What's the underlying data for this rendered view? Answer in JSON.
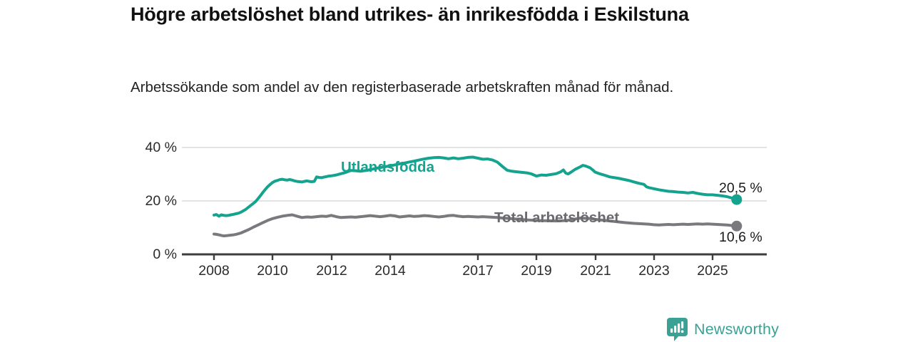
{
  "header": {
    "title": "Högre arbetslöshet bland utrikes- än inrikesfödda i Eskilstuna",
    "subtitle": "Arbetssökande som andel av den registerbaserade arbetskraften månad för månad."
  },
  "footer": {
    "brand": "Newsworthy"
  },
  "colors": {
    "series1": "#14a38e",
    "series2": "#7a7a7e",
    "series2_label": "#696970",
    "grid": "#dadada",
    "axis": "#3d3d3d",
    "value_label": "#1a1a1a",
    "brand": "#3aa195"
  },
  "chart_data": {
    "type": "line",
    "title": "Högre arbetslöshet bland utrikes- än inrikesfödda i Eskilstuna",
    "subtitle": "Arbetssökande som andel av den registerbaserade arbetskraften månad för månad.",
    "xlabel": "",
    "ylabel": "",
    "grid": "horizontal",
    "legend_position": "inline-labels",
    "x_unit": "year (monthly data)",
    "y_unit": "%",
    "xlim": [
      2006.9,
      2026.85
    ],
    "ylim": [
      0,
      42
    ],
    "x_ticks": [
      "2008",
      "2010",
      "2012",
      "2014",
      "2017",
      "2019",
      "2021",
      "2023",
      "2025"
    ],
    "x_tick_years": [
      2008,
      2010,
      2012,
      2014,
      2017,
      2019,
      2021,
      2023,
      2025
    ],
    "y_ticks": [
      0,
      20,
      40
    ],
    "y_tick_labels": [
      "0 %",
      "20 %",
      "40 %"
    ],
    "series": [
      {
        "name": "Utlandsfödda",
        "color": "#14a38e",
        "end_label": "20,5 %",
        "end_value": 20.5,
        "points": [
          [
            2008.0,
            14.7
          ],
          [
            2008.08,
            14.9
          ],
          [
            2008.17,
            14.3
          ],
          [
            2008.25,
            14.8
          ],
          [
            2008.33,
            14.6
          ],
          [
            2008.42,
            14.5
          ],
          [
            2008.5,
            14.6
          ],
          [
            2008.58,
            14.8
          ],
          [
            2008.67,
            15.0
          ],
          [
            2008.75,
            15.2
          ],
          [
            2008.83,
            15.4
          ],
          [
            2008.92,
            15.8
          ],
          [
            2009.0,
            16.3
          ],
          [
            2009.08,
            16.8
          ],
          [
            2009.17,
            17.6
          ],
          [
            2009.25,
            18.3
          ],
          [
            2009.33,
            19.0
          ],
          [
            2009.42,
            19.8
          ],
          [
            2009.5,
            20.8
          ],
          [
            2009.58,
            21.9
          ],
          [
            2009.67,
            23.2
          ],
          [
            2009.75,
            24.3
          ],
          [
            2009.83,
            25.3
          ],
          [
            2009.92,
            26.2
          ],
          [
            2010.0,
            26.9
          ],
          [
            2010.08,
            27.4
          ],
          [
            2010.17,
            27.7
          ],
          [
            2010.25,
            28.0
          ],
          [
            2010.33,
            28.1
          ],
          [
            2010.42,
            27.9
          ],
          [
            2010.5,
            27.8
          ],
          [
            2010.58,
            28.0
          ],
          [
            2010.67,
            27.8
          ],
          [
            2010.75,
            27.5
          ],
          [
            2010.83,
            27.3
          ],
          [
            2010.92,
            27.2
          ],
          [
            2011.0,
            27.1
          ],
          [
            2011.08,
            27.3
          ],
          [
            2011.17,
            27.5
          ],
          [
            2011.25,
            27.3
          ],
          [
            2011.33,
            27.2
          ],
          [
            2011.42,
            27.3
          ],
          [
            2011.5,
            29.0
          ],
          [
            2011.58,
            28.8
          ],
          [
            2011.67,
            28.7
          ],
          [
            2011.75,
            28.9
          ],
          [
            2011.83,
            29.1
          ],
          [
            2011.92,
            29.3
          ],
          [
            2012.0,
            29.4
          ],
          [
            2012.17,
            29.7
          ],
          [
            2012.33,
            30.2
          ],
          [
            2012.5,
            30.7
          ],
          [
            2012.67,
            31.4
          ],
          [
            2012.83,
            31.3
          ],
          [
            2013.0,
            31.1
          ],
          [
            2013.17,
            31.4
          ],
          [
            2013.33,
            31.7
          ],
          [
            2013.5,
            32.1
          ],
          [
            2013.67,
            32.5
          ],
          [
            2013.83,
            32.8
          ],
          [
            2014.0,
            33.1
          ],
          [
            2014.17,
            33.5
          ],
          [
            2014.33,
            33.9
          ],
          [
            2014.5,
            34.2
          ],
          [
            2014.67,
            34.6
          ],
          [
            2014.83,
            34.9
          ],
          [
            2015.0,
            35.3
          ],
          [
            2015.17,
            35.7
          ],
          [
            2015.33,
            36.0
          ],
          [
            2015.5,
            36.2
          ],
          [
            2015.67,
            36.3
          ],
          [
            2015.83,
            36.1
          ],
          [
            2016.0,
            35.8
          ],
          [
            2016.17,
            36.1
          ],
          [
            2016.33,
            35.8
          ],
          [
            2016.5,
            36.0
          ],
          [
            2016.67,
            36.3
          ],
          [
            2016.83,
            36.4
          ],
          [
            2017.0,
            36.0
          ],
          [
            2017.17,
            35.6
          ],
          [
            2017.33,
            35.7
          ],
          [
            2017.5,
            35.3
          ],
          [
            2017.67,
            34.5
          ],
          [
            2017.83,
            33.0
          ],
          [
            2018.0,
            31.5
          ],
          [
            2018.17,
            31.1
          ],
          [
            2018.33,
            30.9
          ],
          [
            2018.5,
            30.7
          ],
          [
            2018.67,
            30.5
          ],
          [
            2018.83,
            30.1
          ],
          [
            2019.0,
            29.3
          ],
          [
            2019.17,
            29.7
          ],
          [
            2019.33,
            29.6
          ],
          [
            2019.5,
            29.9
          ],
          [
            2019.67,
            30.2
          ],
          [
            2019.83,
            30.9
          ],
          [
            2019.92,
            31.6
          ],
          [
            2020.0,
            30.4
          ],
          [
            2020.08,
            30.1
          ],
          [
            2020.17,
            30.7
          ],
          [
            2020.33,
            31.9
          ],
          [
            2020.5,
            32.8
          ],
          [
            2020.58,
            33.3
          ],
          [
            2020.67,
            33.1
          ],
          [
            2020.83,
            32.4
          ],
          [
            2020.92,
            31.6
          ],
          [
            2021.0,
            30.8
          ],
          [
            2021.17,
            30.1
          ],
          [
            2021.33,
            29.6
          ],
          [
            2021.5,
            29.0
          ],
          [
            2021.67,
            28.7
          ],
          [
            2021.83,
            28.4
          ],
          [
            2022.0,
            28.0
          ],
          [
            2022.17,
            27.6
          ],
          [
            2022.33,
            27.1
          ],
          [
            2022.5,
            26.6
          ],
          [
            2022.67,
            26.2
          ],
          [
            2022.75,
            25.3
          ],
          [
            2022.83,
            25.0
          ],
          [
            2023.0,
            24.6
          ],
          [
            2023.17,
            24.2
          ],
          [
            2023.33,
            23.9
          ],
          [
            2023.5,
            23.6
          ],
          [
            2023.67,
            23.5
          ],
          [
            2023.83,
            23.3
          ],
          [
            2024.0,
            23.2
          ],
          [
            2024.17,
            23.0
          ],
          [
            2024.33,
            23.2
          ],
          [
            2024.5,
            22.8
          ],
          [
            2024.67,
            22.5
          ],
          [
            2024.83,
            22.3
          ],
          [
            2025.0,
            22.3
          ],
          [
            2025.17,
            22.1
          ],
          [
            2025.33,
            21.9
          ],
          [
            2025.5,
            21.6
          ],
          [
            2025.67,
            21.1
          ],
          [
            2025.83,
            20.5
          ]
        ]
      },
      {
        "name": "Total arbetslöshet",
        "color": "#7a7a7e",
        "end_label": "10,6 %",
        "end_value": 10.6,
        "points": [
          [
            2008.0,
            7.6
          ],
          [
            2008.08,
            7.5
          ],
          [
            2008.17,
            7.3
          ],
          [
            2008.25,
            7.1
          ],
          [
            2008.33,
            6.9
          ],
          [
            2008.42,
            7.0
          ],
          [
            2008.5,
            7.1
          ],
          [
            2008.58,
            7.2
          ],
          [
            2008.67,
            7.3
          ],
          [
            2008.75,
            7.5
          ],
          [
            2008.83,
            7.7
          ],
          [
            2008.92,
            8.0
          ],
          [
            2009.0,
            8.4
          ],
          [
            2009.17,
            9.2
          ],
          [
            2009.33,
            10.1
          ],
          [
            2009.5,
            11.0
          ],
          [
            2009.67,
            11.9
          ],
          [
            2009.83,
            12.7
          ],
          [
            2010.0,
            13.4
          ],
          [
            2010.17,
            13.9
          ],
          [
            2010.33,
            14.3
          ],
          [
            2010.5,
            14.6
          ],
          [
            2010.67,
            14.8
          ],
          [
            2010.83,
            14.3
          ],
          [
            2011.0,
            13.8
          ],
          [
            2011.17,
            14.0
          ],
          [
            2011.33,
            13.9
          ],
          [
            2011.5,
            14.1
          ],
          [
            2011.67,
            14.3
          ],
          [
            2011.83,
            14.2
          ],
          [
            2012.0,
            14.6
          ],
          [
            2012.17,
            14.1
          ],
          [
            2012.33,
            13.8
          ],
          [
            2012.5,
            13.9
          ],
          [
            2012.67,
            14.0
          ],
          [
            2012.83,
            13.9
          ],
          [
            2013.0,
            14.1
          ],
          [
            2013.17,
            14.3
          ],
          [
            2013.33,
            14.5
          ],
          [
            2013.5,
            14.3
          ],
          [
            2013.67,
            14.1
          ],
          [
            2013.83,
            14.3
          ],
          [
            2014.0,
            14.6
          ],
          [
            2014.17,
            14.4
          ],
          [
            2014.33,
            14.0
          ],
          [
            2014.5,
            14.2
          ],
          [
            2014.67,
            14.4
          ],
          [
            2014.83,
            14.2
          ],
          [
            2015.0,
            14.3
          ],
          [
            2015.17,
            14.5
          ],
          [
            2015.33,
            14.4
          ],
          [
            2015.5,
            14.2
          ],
          [
            2015.67,
            14.0
          ],
          [
            2015.83,
            14.2
          ],
          [
            2016.0,
            14.5
          ],
          [
            2016.17,
            14.6
          ],
          [
            2016.33,
            14.3
          ],
          [
            2016.5,
            14.1
          ],
          [
            2016.67,
            14.2
          ],
          [
            2016.83,
            14.1
          ],
          [
            2017.0,
            14.0
          ],
          [
            2017.17,
            14.1
          ],
          [
            2017.33,
            14.0
          ],
          [
            2017.5,
            13.9
          ],
          [
            2017.67,
            13.8
          ],
          [
            2017.83,
            13.6
          ],
          [
            2018.0,
            13.5
          ],
          [
            2018.33,
            13.2
          ],
          [
            2018.67,
            12.9
          ],
          [
            2019.0,
            12.7
          ],
          [
            2019.33,
            12.6
          ],
          [
            2019.67,
            12.5
          ],
          [
            2019.92,
            12.6
          ],
          [
            2020.17,
            12.9
          ],
          [
            2020.5,
            13.6
          ],
          [
            2020.83,
            13.4
          ],
          [
            2021.0,
            13.1
          ],
          [
            2021.33,
            12.7
          ],
          [
            2021.67,
            12.3
          ],
          [
            2022.0,
            11.9
          ],
          [
            2022.33,
            11.6
          ],
          [
            2022.5,
            11.5
          ],
          [
            2022.67,
            11.4
          ],
          [
            2022.83,
            11.3
          ],
          [
            2023.0,
            11.1
          ],
          [
            2023.17,
            11.0
          ],
          [
            2023.33,
            11.1
          ],
          [
            2023.5,
            11.2
          ],
          [
            2023.67,
            11.1
          ],
          [
            2023.83,
            11.2
          ],
          [
            2024.0,
            11.3
          ],
          [
            2024.17,
            11.2
          ],
          [
            2024.33,
            11.3
          ],
          [
            2024.5,
            11.4
          ],
          [
            2024.67,
            11.3
          ],
          [
            2024.83,
            11.4
          ],
          [
            2025.0,
            11.3
          ],
          [
            2025.17,
            11.2
          ],
          [
            2025.33,
            11.1
          ],
          [
            2025.5,
            11.0
          ],
          [
            2025.67,
            10.8
          ],
          [
            2025.83,
            10.6
          ]
        ]
      }
    ]
  }
}
